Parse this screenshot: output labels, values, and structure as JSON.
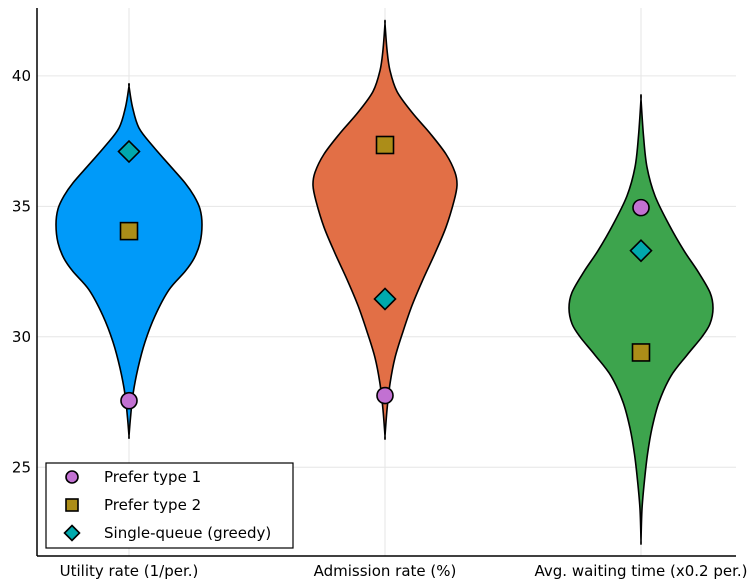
{
  "chart_data": {
    "type": "violin",
    "categories": [
      "Utility rate (1/per.)",
      "Admission rate (%)",
      "Avg. waiting time (x0.2 per.)"
    ],
    "ylim": [
      21.6,
      42.6
    ],
    "yticks": [
      25,
      30,
      35,
      40
    ],
    "grid": true,
    "legend_position": "bottom-left",
    "violins": [
      {
        "category": "Utility rate (1/per.)",
        "color": "#009af9",
        "min": 26.2,
        "max": 39.6,
        "mode": 34.0
      },
      {
        "category": "Admission rate (%)",
        "color": "#e26f46",
        "min": 26.2,
        "max": 42.0,
        "mode": 36.0
      },
      {
        "category": "Avg. waiting time (x0.2 per.)",
        "color": "#3da44d",
        "min": 22.2,
        "max": 39.1,
        "mode": 31.2
      }
    ],
    "series": [
      {
        "name": "Prefer type 1",
        "marker": "circle",
        "color": "#c271d2",
        "values": [
          27.55,
          27.75,
          34.95
        ]
      },
      {
        "name": "Prefer type 2",
        "marker": "square",
        "color": "#ac8d18",
        "values": [
          34.05,
          37.35,
          29.4
        ]
      },
      {
        "name": "Single-queue (greedy)",
        "marker": "diamond",
        "color": "#00a9ad",
        "values": [
          37.1,
          31.45,
          33.3
        ]
      }
    ]
  }
}
